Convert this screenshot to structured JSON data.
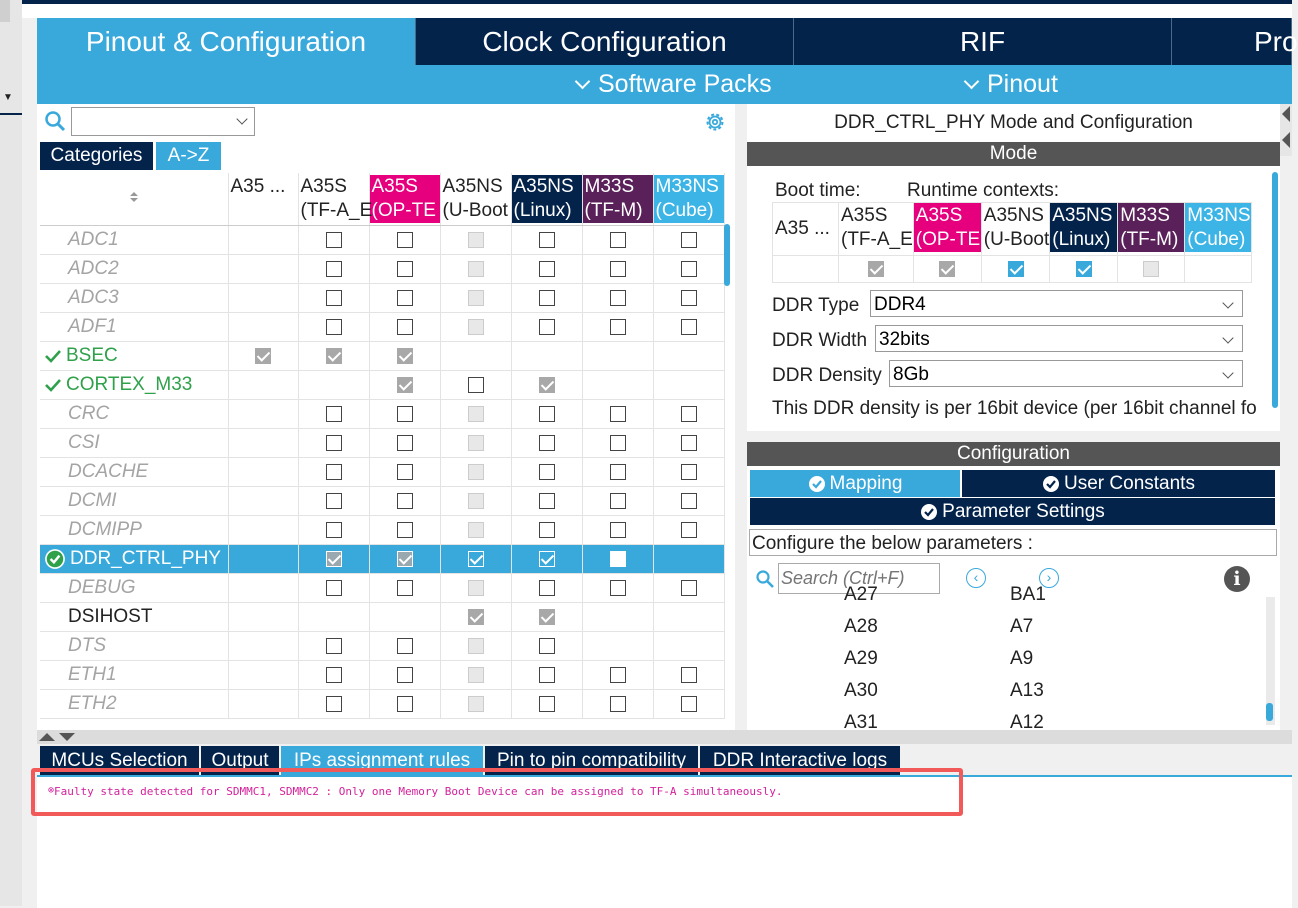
{
  "main_tabs": [
    "Pinout & Configuration",
    "Clock Configuration",
    "RIF",
    "Pro"
  ],
  "sub_tabs": [
    "Software Packs",
    "Pinout"
  ],
  "left": {
    "view_tabs": [
      "Categories",
      "A->Z"
    ],
    "columns": [
      {
        "l1": "A35 ...",
        "l2": "",
        "bg": "",
        "fg": "#222222"
      },
      {
        "l1": "A35S",
        "l2": "(TF-A_E",
        "bg": "",
        "fg": "#222222"
      },
      {
        "l1": "A35S",
        "l2": "(OP-TE",
        "bg": "#e6007e",
        "fg": "#ffffff"
      },
      {
        "l1": "A35NS",
        "l2": "(U-Boot",
        "bg": "",
        "fg": "#222222"
      },
      {
        "l1": "A35NS",
        "l2": "(Linux)",
        "bg": "#03234b",
        "fg": "#ffffff"
      },
      {
        "l1": "M33S",
        "l2": "(TF-M)",
        "bg": "#5a2059",
        "fg": "#ffffff"
      },
      {
        "l1": "M33NS",
        "l2": "(Cube)",
        "bg": "#3cb4e6",
        "fg": "#ffffff"
      }
    ],
    "rows": [
      {
        "name": "ADC1",
        "style": "dis",
        "cells": [
          "-",
          "u",
          "u",
          "d",
          "u",
          "u",
          "u"
        ]
      },
      {
        "name": "ADC2",
        "style": "dis",
        "cells": [
          "-",
          "u",
          "u",
          "d",
          "u",
          "u",
          "u"
        ]
      },
      {
        "name": "ADC3",
        "style": "dis",
        "cells": [
          "-",
          "u",
          "u",
          "d",
          "u",
          "u",
          "u"
        ]
      },
      {
        "name": "ADF1",
        "style": "dis",
        "cells": [
          "-",
          "u",
          "u",
          "d",
          "u",
          "u",
          "u"
        ]
      },
      {
        "name": "BSEC",
        "style": "ok",
        "cells": [
          "c",
          "c",
          "c",
          "-",
          "-",
          "-",
          "-"
        ]
      },
      {
        "name": "CORTEX_M33",
        "style": "ok",
        "cells": [
          "-",
          "-",
          "c",
          "u",
          "c",
          "-",
          "-"
        ]
      },
      {
        "name": "CRC",
        "style": "dis",
        "cells": [
          "-",
          "u",
          "u",
          "d",
          "u",
          "u",
          "u"
        ]
      },
      {
        "name": "CSI",
        "style": "dis",
        "cells": [
          "-",
          "u",
          "u",
          "d",
          "u",
          "u",
          "u"
        ]
      },
      {
        "name": "DCACHE",
        "style": "dis",
        "cells": [
          "-",
          "u",
          "u",
          "d",
          "u",
          "u",
          "u"
        ]
      },
      {
        "name": "DCMI",
        "style": "dis",
        "cells": [
          "-",
          "u",
          "u",
          "d",
          "u",
          "u",
          "u"
        ]
      },
      {
        "name": "DCMIPP",
        "style": "dis",
        "cells": [
          "-",
          "u",
          "u",
          "d",
          "u",
          "u",
          "u"
        ]
      },
      {
        "name": "DDR_CTRL_PHY",
        "style": "sel",
        "cells": [
          "-",
          "c",
          "c",
          "b",
          "b",
          "w",
          "-"
        ]
      },
      {
        "name": "DEBUG",
        "style": "dis",
        "cells": [
          "-",
          "u",
          "u",
          "d",
          "u",
          "u",
          "u"
        ]
      },
      {
        "name": "DSIHOST",
        "style": "plain",
        "cells": [
          "-",
          "-",
          "-",
          "c",
          "c",
          "-",
          "-"
        ]
      },
      {
        "name": "DTS",
        "style": "dis",
        "cells": [
          "-",
          "u",
          "u",
          "d",
          "u",
          "-",
          "-"
        ]
      },
      {
        "name": "ETH1",
        "style": "dis",
        "cells": [
          "-",
          "u",
          "u",
          "d",
          "u",
          "u",
          "u"
        ]
      },
      {
        "name": "ETH2",
        "style": "dis",
        "cells": [
          "-",
          "u",
          "u",
          "d",
          "u",
          "u",
          "u"
        ]
      }
    ]
  },
  "right": {
    "title": "DDR_CTRL_PHY Mode and Configuration",
    "mode_label": "Mode",
    "boot_time_label": "Boot time:",
    "runtime_label": "Runtime contexts:",
    "ctx_columns": [
      {
        "l1": "A35 ...",
        "l2": "",
        "bg": "",
        "fg": "#222222"
      },
      {
        "l1": "A35S",
        "l2": "(TF-A_E",
        "bg": "",
        "fg": "#222222"
      },
      {
        "l1": "A35S",
        "l2": "(OP-TE",
        "bg": "#e6007e",
        "fg": "#ffffff"
      },
      {
        "l1": "A35NS",
        "l2": "(U-Boot",
        "bg": "",
        "fg": "#222222"
      },
      {
        "l1": "A35NS",
        "l2": "(Linux)",
        "bg": "#03234b",
        "fg": "#ffffff"
      },
      {
        "l1": "M33S",
        "l2": "(TF-M)",
        "bg": "#5a2059",
        "fg": "#ffffff"
      },
      {
        "l1": "M33NS",
        "l2": "(Cube)",
        "bg": "#3cb4e6",
        "fg": "#ffffff"
      }
    ],
    "ctx_checks": [
      "-",
      "c",
      "c",
      "b",
      "b",
      "d",
      "-"
    ],
    "ddr_type_label": "DDR Type",
    "ddr_type_value": "DDR4",
    "ddr_width_label": "DDR Width",
    "ddr_width_value": "32bits",
    "ddr_density_label": "DDR Density",
    "ddr_density_value": "8Gb",
    "density_note": "This DDR density is per 16bit device (per 16bit channel fo",
    "config_label": "Configuration",
    "mapping_tab": "Mapping",
    "user_constants_tab": "User Constants",
    "parameter_settings_tab": "Parameter Settings",
    "configure_text": "Configure the below parameters :",
    "search_placeholder": "Search (Ctrl+F)",
    "params": [
      {
        "k": "A27",
        "v": "BA1"
      },
      {
        "k": "A28",
        "v": "A7"
      },
      {
        "k": "A29",
        "v": "A9"
      },
      {
        "k": "A30",
        "v": "A13"
      },
      {
        "k": "A31",
        "v": "A12"
      }
    ]
  },
  "bottom_tabs": [
    "MCUs Selection",
    "Output",
    "IPs assignment rules",
    "Pin to pin compatibility",
    "DDR Interactive logs"
  ],
  "error_message": "Faulty state detected for SDMMC1, SDMMC2 : Only one Memory Boot Device can be assigned to TF-A simultaneously.",
  "colors": {
    "accent": "#39a9dc",
    "navy": "#03234b",
    "ok": "#2fa14b",
    "error_box": "#f25a5a",
    "error_text": "#d41f9a"
  }
}
